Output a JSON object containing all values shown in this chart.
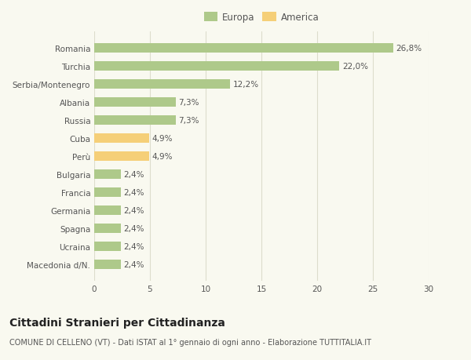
{
  "categories": [
    "Macedonia d/N.",
    "Ucraina",
    "Spagna",
    "Germania",
    "Francia",
    "Bulgaria",
    "Perù",
    "Cuba",
    "Russia",
    "Albania",
    "Serbia/Montenegro",
    "Turchia",
    "Romania"
  ],
  "values": [
    2.4,
    2.4,
    2.4,
    2.4,
    2.4,
    2.4,
    4.9,
    4.9,
    7.3,
    7.3,
    12.2,
    22.0,
    26.8
  ],
  "colors": [
    "#aec98a",
    "#aec98a",
    "#aec98a",
    "#aec98a",
    "#aec98a",
    "#aec98a",
    "#f5cf78",
    "#f5cf78",
    "#aec98a",
    "#aec98a",
    "#aec98a",
    "#aec98a",
    "#aec98a"
  ],
  "labels": [
    "2,4%",
    "2,4%",
    "2,4%",
    "2,4%",
    "2,4%",
    "2,4%",
    "4,9%",
    "4,9%",
    "7,3%",
    "7,3%",
    "12,2%",
    "22,0%",
    "26,8%"
  ],
  "europa_color": "#aec98a",
  "america_color": "#f5cf78",
  "title": "Cittadini Stranieri per Cittadinanza",
  "subtitle": "COMUNE DI CELLENO (VT) - Dati ISTAT al 1° gennaio di ogni anno - Elaborazione TUTTITALIA.IT",
  "xlim": [
    0,
    30
  ],
  "xticks": [
    0,
    5,
    10,
    15,
    20,
    25,
    30
  ],
  "background_color": "#f9f9f0",
  "grid_color": "#ddddcc",
  "bar_height": 0.55,
  "label_fontsize": 7.5,
  "tick_fontsize": 7.5,
  "title_fontsize": 10,
  "subtitle_fontsize": 7,
  "legend_fontsize": 8.5
}
